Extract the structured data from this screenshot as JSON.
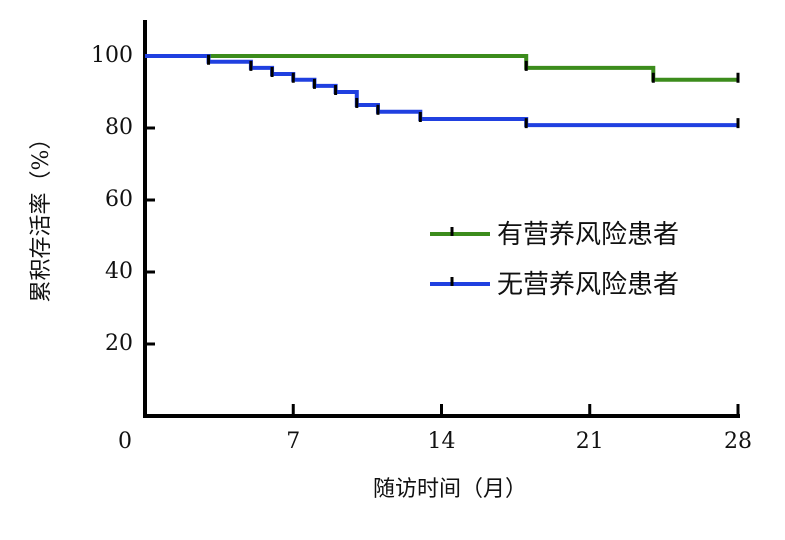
{
  "chart_data": {
    "type": "step",
    "y_label": "累积存活率（%）",
    "x_label": "随访时间（月）",
    "xlim": [
      0,
      28
    ],
    "xticks": [
      0,
      7,
      14,
      21,
      28
    ],
    "ylim": [
      0,
      110
    ],
    "yticks": [
      20,
      40,
      60,
      80,
      100
    ],
    "legend": "right",
    "series": [
      {
        "name": "有营养风险患者",
        "color": "#3c8c1c",
        "x": [
          0,
          18,
          24,
          28
        ],
        "values": [
          100,
          96.7,
          93.4,
          93.4
        ]
      },
      {
        "name": "无营养风险患者",
        "color": "#2040e0",
        "x": [
          0,
          3,
          5,
          6,
          7,
          8,
          9,
          10,
          11,
          13,
          18,
          28
        ],
        "values": [
          100,
          98.4,
          96.7,
          95,
          93.4,
          91.7,
          90,
          86.4,
          84.5,
          82.5,
          80.8,
          80.8
        ]
      }
    ]
  }
}
